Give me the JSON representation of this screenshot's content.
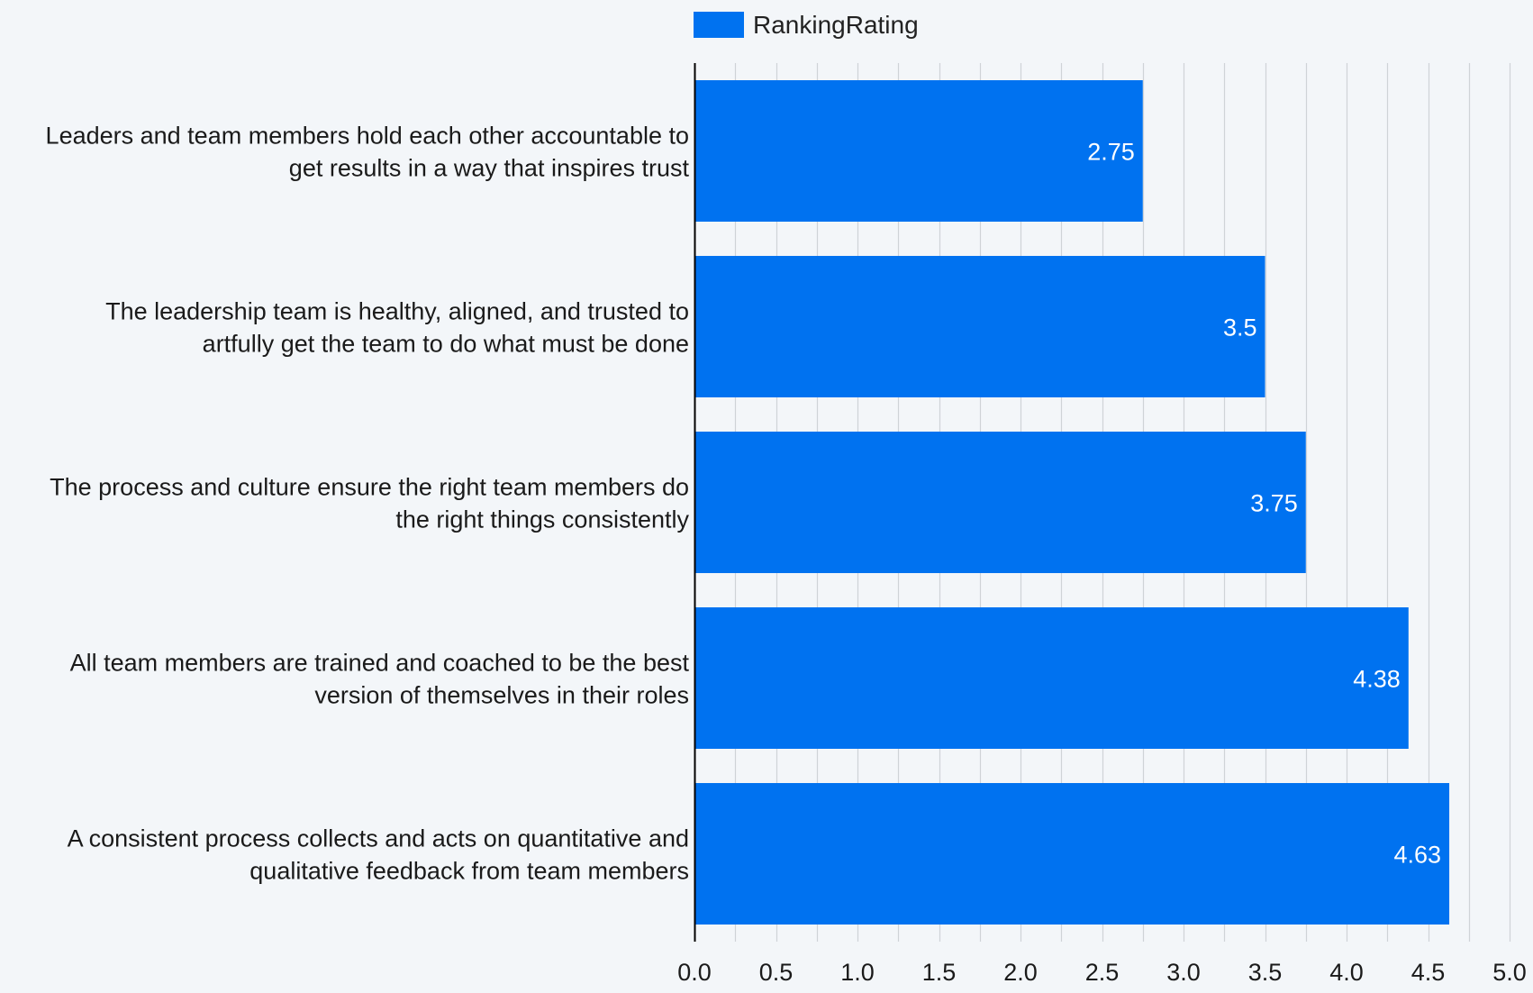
{
  "chart_data": {
    "type": "bar",
    "orientation": "horizontal",
    "categories": [
      "Leaders and team members hold each other accountable to get results in a way that inspires trust",
      "The leadership team is healthy, aligned, and trusted to artfully get the team to do what must be done",
      "The process and culture ensure the right team members do the right things consistently",
      "All team members are trained and coached to be the best version of themselves in their roles",
      "A consistent process collects and acts on quantitative and qualitative feedback from team members"
    ],
    "category_lines": [
      [
        "Leaders and team members hold each other accountable to",
        "get results in a way that inspires trust"
      ],
      [
        "The leadership team is healthy, aligned, and trusted to",
        "artfully get the team to do what must be done"
      ],
      [
        "The process and culture ensure the right team members do",
        "the right things consistently"
      ],
      [
        "All team members are trained and coached to be the best",
        "version of themselves in their roles"
      ],
      [
        "A consistent process collects and acts on quantitative and",
        "qualitative feedback from team members"
      ]
    ],
    "series": [
      {
        "name": "RankingRating",
        "values": [
          2.75,
          3.5,
          3.75,
          4.38,
          4.63
        ],
        "data_labels": [
          "2.75",
          "3.5",
          "3.75",
          "4.38",
          "4.63"
        ],
        "color": "#0072f0"
      }
    ],
    "xlim": [
      0,
      5.0
    ],
    "x_ticks": [
      "0.0",
      "0.5",
      "1.0",
      "1.5",
      "2.0",
      "2.5",
      "3.0",
      "3.5",
      "4.0",
      "4.5",
      "5.0"
    ],
    "minor_gridlines_per_major": 2,
    "grid": true,
    "legend": "top-center",
    "title": "",
    "xlabel": "",
    "ylabel": ""
  },
  "colors": {
    "background": "#f3f6f9",
    "bar": "#0072f0",
    "gridline": "#cfd3d7",
    "axis": "#000000"
  }
}
